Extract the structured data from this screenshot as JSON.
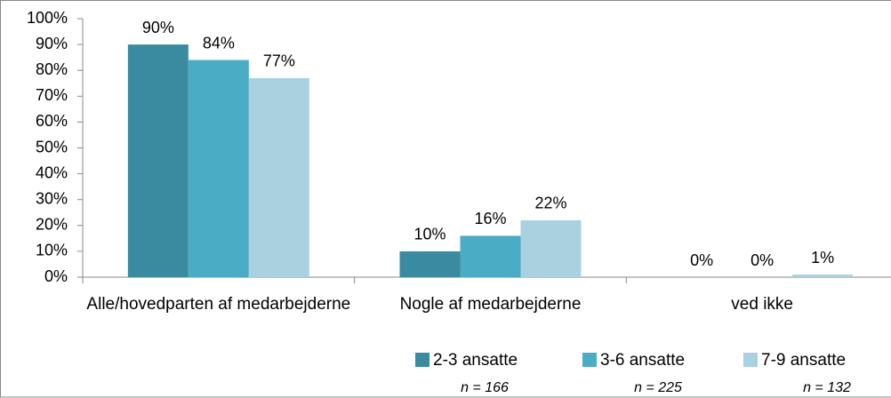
{
  "chart_data": {
    "type": "bar",
    "categories": [
      "Alle/hovedparten af medarbejderne",
      "Nogle af medarbejderne",
      "ved ikke"
    ],
    "series": [
      {
        "name": "2-3 ansatte",
        "color": "#3a8b9f",
        "values": [
          90,
          10,
          0
        ],
        "value_labels": [
          "90%",
          "10%",
          "0%"
        ]
      },
      {
        "name": "3-6 ansatte",
        "color": "#4bacc6",
        "values": [
          84,
          16,
          0
        ],
        "value_labels": [
          "84%",
          "16%",
          "0%"
        ]
      },
      {
        "name": "7-9 ansatte",
        "color": "#a9d1e0",
        "values": [
          77,
          22,
          1
        ],
        "value_labels": [
          "77%",
          "22%",
          "1%"
        ]
      }
    ],
    "annotations": [
      "n = 166",
      "n = 225",
      "n = 132"
    ],
    "ylim": [
      0,
      100
    ],
    "yticks": [
      {
        "value": 0,
        "label": "0%"
      },
      {
        "value": 10,
        "label": "10%"
      },
      {
        "value": 20,
        "label": "20%"
      },
      {
        "value": 30,
        "label": "30%"
      },
      {
        "value": 40,
        "label": "40%"
      },
      {
        "value": 50,
        "label": "50%"
      },
      {
        "value": 60,
        "label": "60%"
      },
      {
        "value": 70,
        "label": "70%"
      },
      {
        "value": 80,
        "label": "80%"
      },
      {
        "value": 90,
        "label": "90%"
      },
      {
        "value": 100,
        "label": "100%"
      }
    ],
    "grid": false,
    "legend": "bottom"
  }
}
